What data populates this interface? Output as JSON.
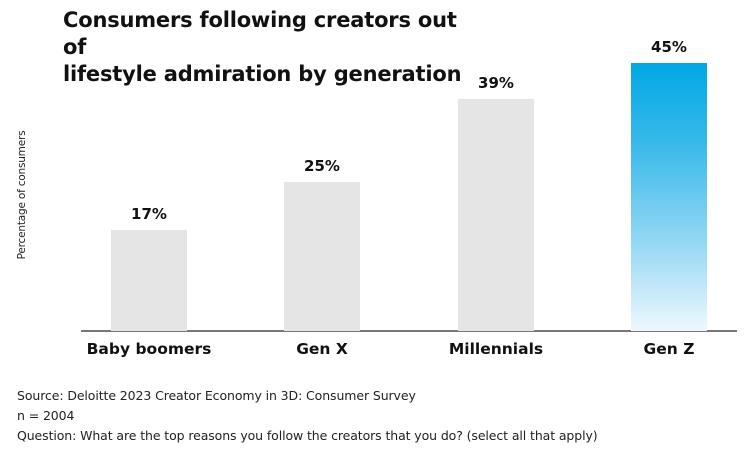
{
  "chart_data": {
    "type": "bar",
    "title": "Consumers following creators out of lifestyle admiration by generation",
    "xlabel": "",
    "ylabel": "Percentage of consumers",
    "categories": [
      "Baby boomers",
      "Gen X",
      "Millennials",
      "Gen Z"
    ],
    "values": [
      17,
      25,
      39,
      45
    ],
    "value_labels": [
      "17%",
      "25%",
      "39%",
      "45%"
    ],
    "unit": "%",
    "ylim": [
      0,
      50
    ],
    "grid": false,
    "legend": null,
    "highlight_index": 3
  },
  "title": {
    "line1": "Consumers following creators out of",
    "line2": "lifestyle admiration by generation"
  },
  "axis": {
    "ylabel": "Percentage of consumers"
  },
  "colors": {
    "bar_default": "#e5e5e5",
    "bar_highlight_top": "#00a8e4",
    "bar_highlight_bottom": "#eef8fe",
    "baseline": "#777777",
    "text": "#111111"
  },
  "notes": {
    "source": "Source: Deloitte 2023 Creator Economy in 3D: Consumer Survey",
    "sample": "n = 2004",
    "question": "Question: What are the top reasons you follow the creators that you do? (select all that apply)"
  }
}
